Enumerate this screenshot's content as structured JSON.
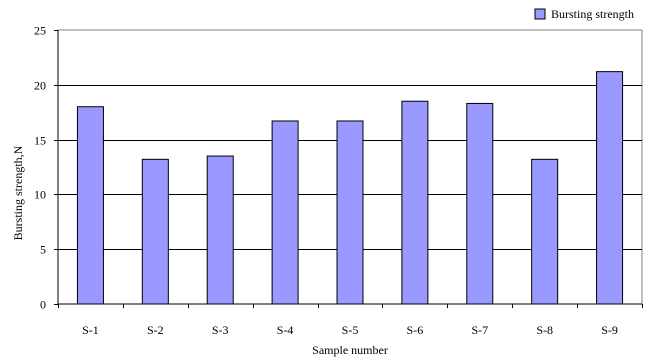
{
  "chart_data": {
    "type": "bar",
    "title": "",
    "xlabel": "Sample number",
    "ylabel": "Bursting strength,N",
    "categories": [
      "S-1",
      "S-2",
      "S-3",
      "S-4",
      "S-5",
      "S-6",
      "S-7",
      "S-8",
      "S-9"
    ],
    "series": [
      {
        "name": "Bursting strength",
        "values": [
          18.0,
          13.2,
          13.5,
          16.7,
          16.7,
          18.5,
          18.3,
          13.2,
          21.2
        ],
        "color": "#9999ff"
      }
    ],
    "ylim": [
      0,
      25
    ],
    "yticks": [
      0,
      5,
      10,
      15,
      20,
      25
    ],
    "grid": true,
    "legend_position": "top-right"
  }
}
